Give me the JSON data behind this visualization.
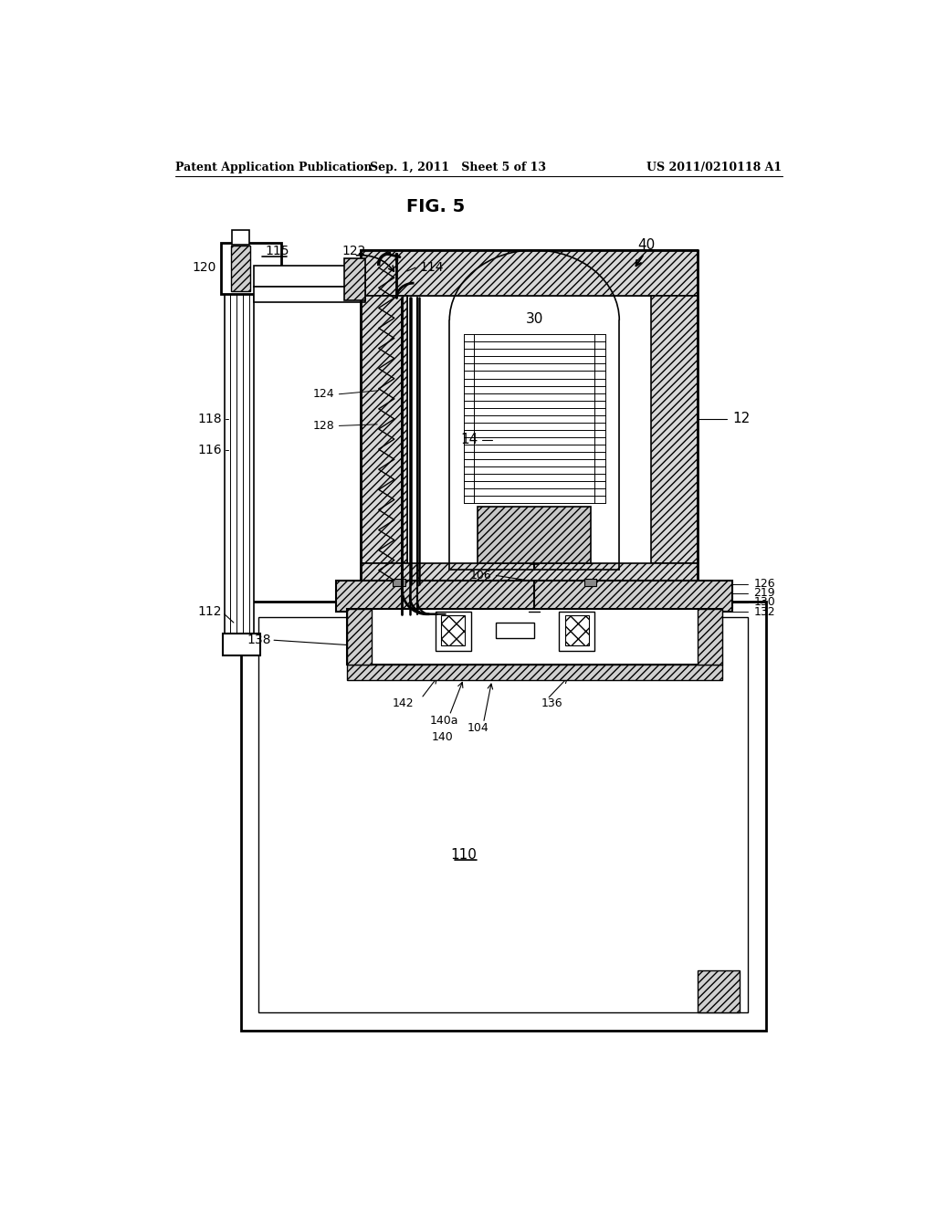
{
  "header_left": "Patent Application Publication",
  "header_center": "Sep. 1, 2011   Sheet 5 of 13",
  "header_right": "US 2011/0210118 A1",
  "title": "FIG. 5",
  "bg": "#ffffff"
}
